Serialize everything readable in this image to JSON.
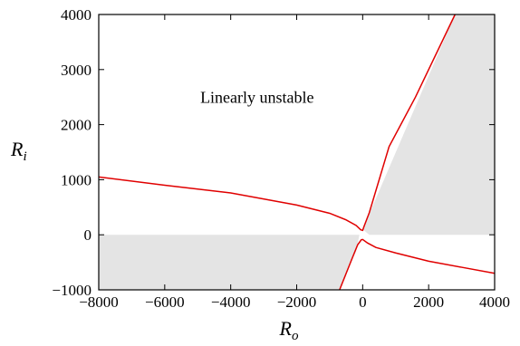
{
  "chart_data": {
    "type": "line",
    "title": "",
    "xlabel": {
      "main": "R",
      "sub": "o"
    },
    "ylabel": {
      "main": "R",
      "sub": "i"
    },
    "xlim": [
      -8000,
      4000
    ],
    "ylim": [
      -1000,
      4000
    ],
    "x_ticks": [
      -8000,
      -6000,
      -4000,
      -2000,
      0,
      2000,
      4000
    ],
    "x_tick_labels": [
      "−8000",
      "−6000",
      "−4000",
      "−2000",
      "0",
      "2000",
      "4000"
    ],
    "y_ticks": [
      -1000,
      0,
      1000,
      2000,
      3000,
      4000
    ],
    "y_tick_labels": [
      "−1000",
      "0",
      "1000",
      "2000",
      "3000",
      "4000"
    ],
    "grid": false,
    "annotations": [
      {
        "text": "Linearly unstable",
        "x": -3200,
        "y": 2400
      }
    ],
    "shaded_regions": [
      {
        "color": "#e4e4e4",
        "polygon": [
          [
            -8000,
            0
          ],
          [
            -100,
            0
          ],
          [
            -200,
            -300
          ],
          [
            -500,
            -700
          ],
          [
            -700,
            -1000
          ],
          [
            -8000,
            -1000
          ]
        ]
      },
      {
        "color": "#e4e4e4",
        "polygon": [
          [
            0,
            100
          ],
          [
            2800,
            4000
          ],
          [
            4000,
            4000
          ],
          [
            4000,
            0
          ],
          [
            200,
            0
          ],
          [
            0,
            100
          ]
        ]
      }
    ],
    "series": [
      {
        "color": "#e00000",
        "points": [
          [
            -8000,
            1050
          ],
          [
            -6000,
            900
          ],
          [
            -4000,
            760
          ],
          [
            -2000,
            540
          ],
          [
            -1000,
            390
          ],
          [
            -500,
            270
          ],
          [
            -200,
            170
          ],
          [
            -60,
            90
          ],
          [
            0,
            80
          ],
          [
            40,
            150
          ],
          [
            200,
            400
          ],
          [
            800,
            1600
          ],
          [
            1600,
            2500
          ],
          [
            2800,
            4000
          ]
        ]
      },
      {
        "color": "#e00000",
        "points": [
          [
            -700,
            -1000
          ],
          [
            -500,
            -700
          ],
          [
            -300,
            -400
          ],
          [
            -150,
            -180
          ],
          [
            -40,
            -90
          ],
          [
            0,
            -85
          ],
          [
            150,
            -150
          ],
          [
            400,
            -230
          ],
          [
            1000,
            -330
          ],
          [
            2000,
            -480
          ],
          [
            3000,
            -590
          ],
          [
            4000,
            -700
          ]
        ]
      }
    ]
  }
}
